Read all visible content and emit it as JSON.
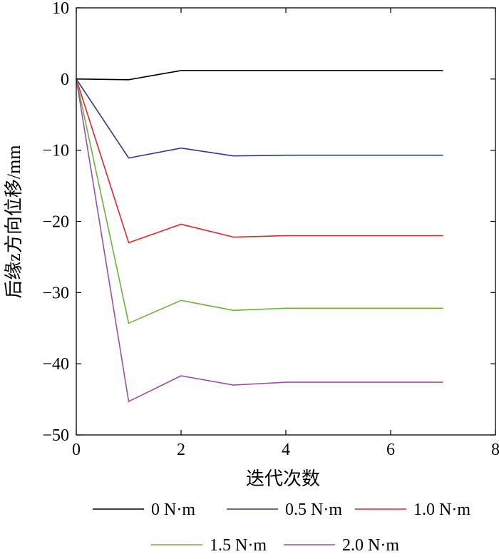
{
  "chart_data": {
    "type": "line",
    "title": "",
    "xlabel": "迭代次数",
    "ylabel": "后缘z方向位移/mm",
    "xlim": [
      0,
      8
    ],
    "ylim": [
      -50,
      10
    ],
    "xticks": [
      0,
      2,
      4,
      6,
      8
    ],
    "yticks": [
      10,
      0,
      -10,
      -20,
      -30,
      -40,
      -50
    ],
    "grid": false,
    "legend_position": "bottom",
    "x": [
      0,
      1,
      2,
      3,
      4,
      5,
      6,
      7
    ],
    "series": [
      {
        "name": "0 N·m",
        "color": "#000000",
        "values": [
          0,
          -0.1,
          1.2,
          1.2,
          1.2,
          1.2,
          1.2,
          1.2
        ]
      },
      {
        "name": "0.5 N·m",
        "color": "#2b3990",
        "values": [
          0,
          -11.1,
          -9.7,
          -10.8,
          -10.7,
          -10.7,
          -10.7,
          -10.7
        ]
      },
      {
        "name": "1.0 N·m",
        "color": "#e0262b",
        "values": [
          0,
          -23.0,
          -20.4,
          -22.2,
          -22.0,
          -22.0,
          -22.0,
          -22.0
        ]
      },
      {
        "name": "1.5 N·m",
        "color": "#6ab23e",
        "values": [
          0,
          -34.3,
          -31.1,
          -32.5,
          -32.2,
          -32.2,
          -32.2,
          -32.2
        ]
      },
      {
        "name": "2.0 N·m",
        "color": "#9b4fa5",
        "values": [
          0,
          -45.3,
          -41.7,
          -43.0,
          -42.6,
          -42.6,
          -42.6,
          -42.6
        ]
      }
    ]
  }
}
